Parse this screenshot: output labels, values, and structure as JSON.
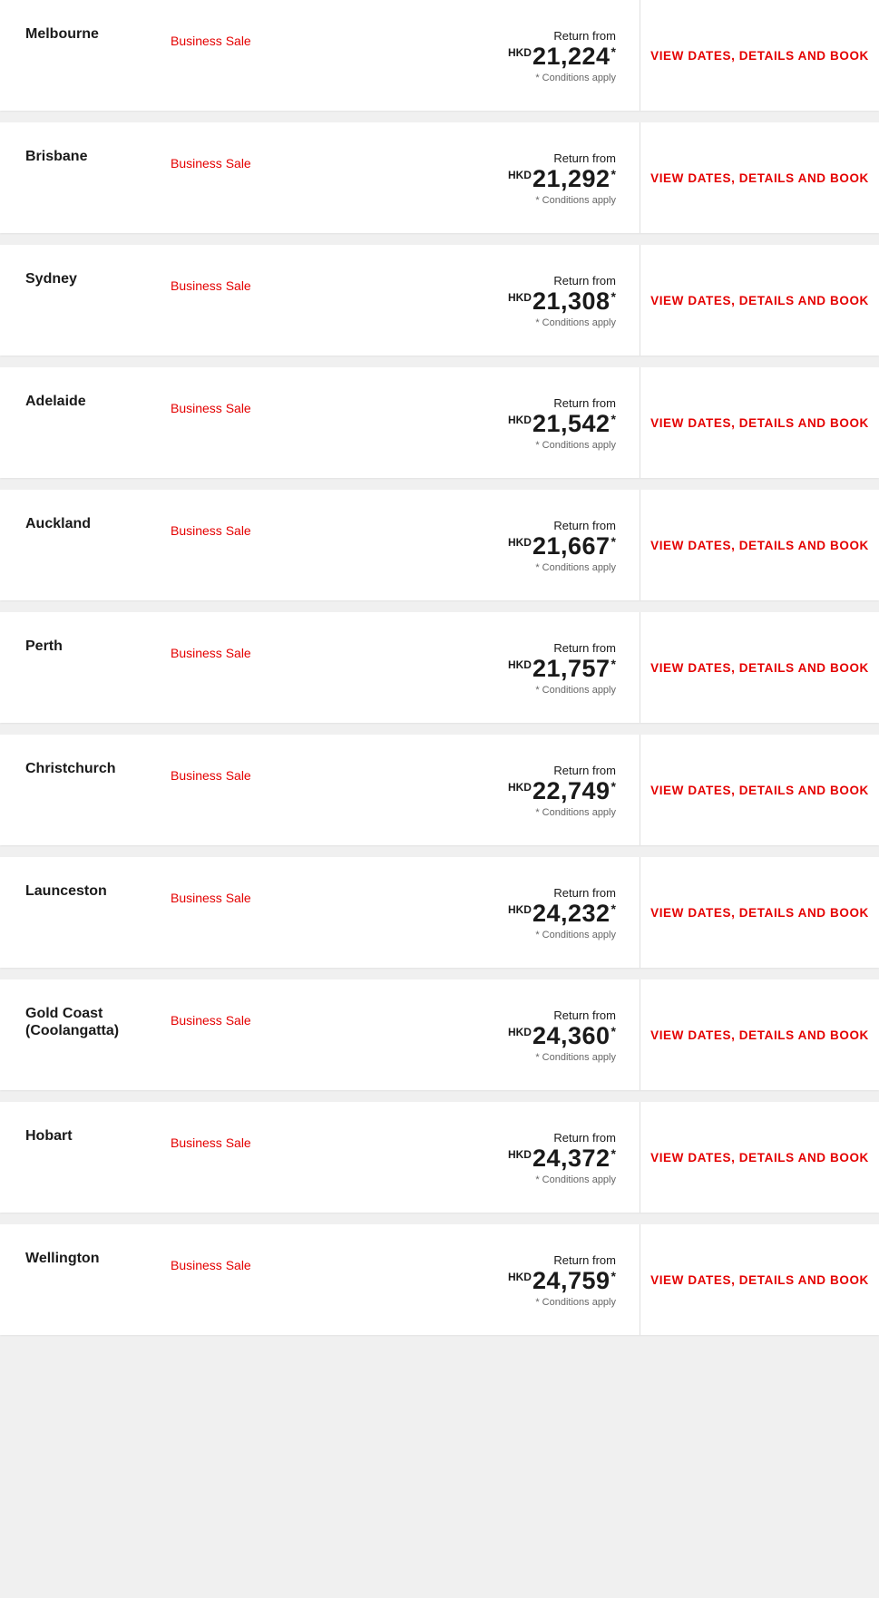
{
  "common": {
    "return_from_label": "Return from",
    "currency": "HKD",
    "conditions_label": "* Conditions apply",
    "sale_label": "Business Sale",
    "view_label": "VIEW DATES, DETAILS AND BOOK",
    "asterisk": "*"
  },
  "colors": {
    "accent": "#e40000",
    "text": "#1a1a1a",
    "muted": "#666666",
    "background": "#f0f0f0",
    "card": "#ffffff",
    "divider": "#e0e0e0"
  },
  "fares": [
    {
      "destination": "Melbourne",
      "price": "21,224"
    },
    {
      "destination": "Brisbane",
      "price": "21,292"
    },
    {
      "destination": "Sydney",
      "price": "21,308"
    },
    {
      "destination": "Adelaide",
      "price": "21,542"
    },
    {
      "destination": "Auckland",
      "price": "21,667"
    },
    {
      "destination": "Perth",
      "price": "21,757"
    },
    {
      "destination": "Christchurch",
      "price": "22,749"
    },
    {
      "destination": "Launceston",
      "price": "24,232"
    },
    {
      "destination": "Gold Coast (Coolangatta)",
      "price": "24,360"
    },
    {
      "destination": "Hobart",
      "price": "24,372"
    },
    {
      "destination": "Wellington",
      "price": "24,759"
    }
  ]
}
